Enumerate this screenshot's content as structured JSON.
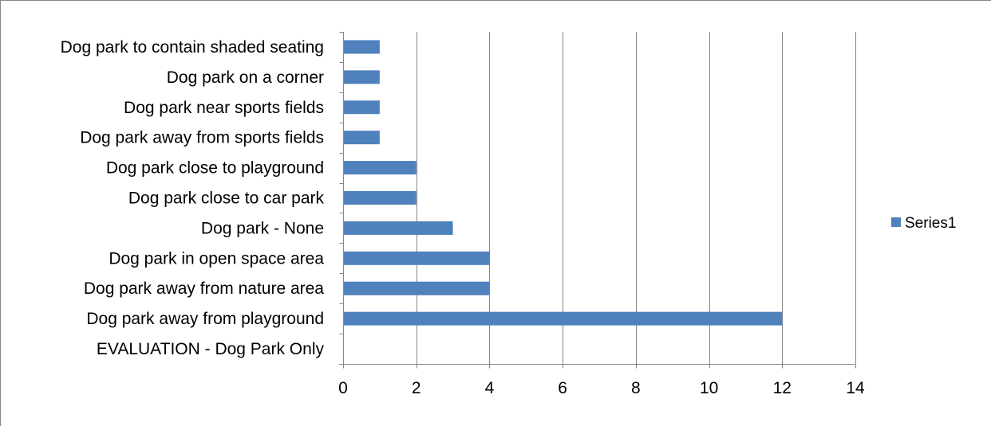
{
  "chart_data": {
    "type": "bar",
    "orientation": "horizontal",
    "categories": [
      "EVALUATION - Dog Park Only",
      "Dog park away from playground",
      "Dog park away from nature area",
      "Dog park in open space area",
      "Dog park - None",
      "Dog park close to car park",
      "Dog park close to playground",
      "Dog park away from sports fields",
      "Dog park near sports fields",
      "Dog park on a corner",
      "Dog park to contain shaded seating"
    ],
    "series": [
      {
        "name": "Series1",
        "values": [
          0,
          12,
          4,
          4,
          3,
          2,
          2,
          1,
          1,
          1,
          1
        ],
        "color": "#4f81bd"
      }
    ],
    "xlim": [
      0,
      14
    ],
    "x_ticks": [
      0,
      2,
      4,
      6,
      8,
      10,
      12,
      14
    ],
    "x_tick_labels": [
      "0",
      "2",
      "4",
      "6",
      "8",
      "10",
      "12",
      "14"
    ],
    "grid": "vertical major gridlines",
    "legend_position": "right",
    "title": "",
    "xlabel": "",
    "ylabel": ""
  },
  "colors": {
    "bar": "#4f81bd",
    "grid": "#868686",
    "axis": "#868686"
  }
}
